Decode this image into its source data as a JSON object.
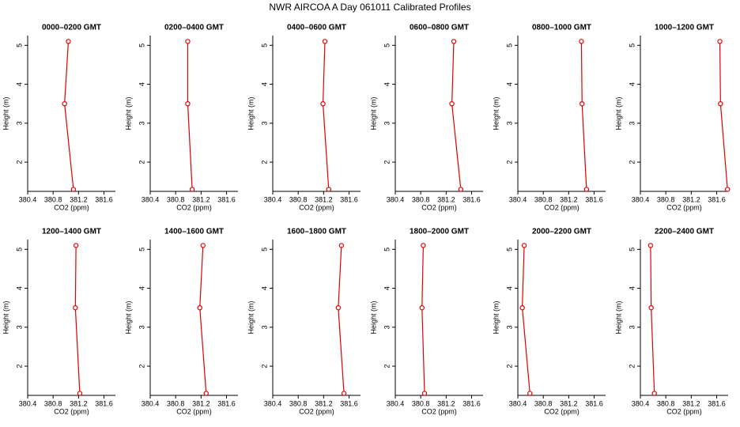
{
  "title": "NWR AIRCOA A  Day 061011  Calibrated Profiles",
  "chart_data": [
    {
      "type": "line",
      "title": "0000–0200 GMT",
      "xlabel": "CO2 (ppm)",
      "ylabel": "Height (m)",
      "y": [
        5.1,
        3.5,
        1.3
      ],
      "series": [
        {
          "color": "#e00000",
          "values": [
            381.04,
            380.98,
            381.12
          ]
        }
      ],
      "xlim": [
        380.4,
        381.78
      ],
      "xticks": [
        380.4,
        380.8,
        381.2,
        381.6
      ],
      "ylim": [
        1.25,
        5.25
      ],
      "yticks": [
        2,
        3,
        4,
        5
      ]
    },
    {
      "type": "line",
      "title": "0200–0400 GMT",
      "xlabel": "CO2 (ppm)",
      "ylabel": "Height (m)",
      "y": [
        5.1,
        3.5,
        1.3
      ],
      "series": [
        {
          "color": "#e00000",
          "values": [
            380.99,
            380.99,
            381.06
          ]
        }
      ],
      "xlim": [
        380.4,
        381.78
      ],
      "xticks": [
        380.4,
        380.8,
        381.2,
        381.6
      ],
      "ylim": [
        1.25,
        5.25
      ],
      "yticks": [
        2,
        3,
        4,
        5
      ]
    },
    {
      "type": "line",
      "title": "0400–0600 GMT",
      "xlabel": "CO2 (ppm)",
      "ylabel": "Height (m)",
      "y": [
        5.1,
        3.5,
        1.3
      ],
      "series": [
        {
          "color": "#e00000",
          "values": [
            381.22,
            381.19,
            381.28
          ]
        }
      ],
      "xlim": [
        380.4,
        381.78
      ],
      "xticks": [
        380.4,
        380.8,
        381.2,
        381.6
      ],
      "ylim": [
        1.25,
        5.25
      ],
      "yticks": [
        2,
        3,
        4,
        5
      ]
    },
    {
      "type": "line",
      "title": "0600–0800 GMT",
      "xlabel": "CO2 (ppm)",
      "ylabel": "Height (m)",
      "y": [
        5.1,
        3.5,
        1.3
      ],
      "series": [
        {
          "color": "#e00000",
          "values": [
            381.32,
            381.29,
            381.43
          ]
        }
      ],
      "xlim": [
        380.4,
        381.78
      ],
      "xticks": [
        380.4,
        380.8,
        381.2,
        381.6
      ],
      "ylim": [
        1.25,
        5.25
      ],
      "yticks": [
        2,
        3,
        4,
        5
      ]
    },
    {
      "type": "line",
      "title": "0800–1000 GMT",
      "xlabel": "CO2 (ppm)",
      "ylabel": "Height (m)",
      "y": [
        5.1,
        3.5,
        1.3
      ],
      "series": [
        {
          "color": "#e00000",
          "values": [
            381.4,
            381.41,
            381.48
          ]
        }
      ],
      "xlim": [
        380.4,
        381.78
      ],
      "xticks": [
        380.4,
        380.8,
        381.2,
        381.6
      ],
      "ylim": [
        1.25,
        5.25
      ],
      "yticks": [
        2,
        3,
        4,
        5
      ]
    },
    {
      "type": "line",
      "title": "1000–1200 GMT",
      "xlabel": "CO2 (ppm)",
      "ylabel": "Height (m)",
      "y": [
        5.1,
        3.5,
        1.3
      ],
      "series": [
        {
          "color": "#e00000",
          "values": [
            381.65,
            381.66,
            381.77
          ]
        }
      ],
      "xlim": [
        380.4,
        381.78
      ],
      "xticks": [
        380.4,
        380.8,
        381.2,
        381.6
      ],
      "ylim": [
        1.25,
        5.25
      ],
      "yticks": [
        2,
        3,
        4,
        5
      ]
    },
    {
      "type": "line",
      "title": "1200–1400 GMT",
      "xlabel": "CO2 (ppm)",
      "ylabel": "Height (m)",
      "y": [
        5.1,
        3.5,
        1.3
      ],
      "series": [
        {
          "color": "#e00000",
          "values": [
            381.16,
            381.15,
            381.22
          ]
        }
      ],
      "xlim": [
        380.4,
        381.78
      ],
      "xticks": [
        380.4,
        380.8,
        381.2,
        381.6
      ],
      "ylim": [
        1.25,
        5.25
      ],
      "yticks": [
        2,
        3,
        4,
        5
      ]
    },
    {
      "type": "line",
      "title": "1400–1600 GMT",
      "xlabel": "CO2 (ppm)",
      "ylabel": "Height (m)",
      "y": [
        5.1,
        3.5,
        1.3
      ],
      "series": [
        {
          "color": "#e00000",
          "values": [
            381.23,
            381.18,
            381.28
          ]
        }
      ],
      "xlim": [
        380.4,
        381.78
      ],
      "xticks": [
        380.4,
        380.8,
        381.2,
        381.6
      ],
      "ylim": [
        1.25,
        5.25
      ],
      "yticks": [
        2,
        3,
        4,
        5
      ]
    },
    {
      "type": "line",
      "title": "1600–1800 GMT",
      "xlabel": "CO2 (ppm)",
      "ylabel": "Height (m)",
      "y": [
        5.1,
        3.5,
        1.3
      ],
      "series": [
        {
          "color": "#e00000",
          "values": [
            381.48,
            381.43,
            381.52
          ]
        }
      ],
      "xlim": [
        380.4,
        381.78
      ],
      "xticks": [
        380.4,
        380.8,
        381.2,
        381.6
      ],
      "ylim": [
        1.25,
        5.25
      ],
      "yticks": [
        2,
        3,
        4,
        5
      ]
    },
    {
      "type": "line",
      "title": "1800–2000 GMT",
      "xlabel": "CO2 (ppm)",
      "ylabel": "Height (m)",
      "y": [
        5.1,
        3.5,
        1.3
      ],
      "series": [
        {
          "color": "#e00000",
          "values": [
            380.84,
            380.82,
            380.86
          ]
        }
      ],
      "xlim": [
        380.4,
        381.78
      ],
      "xticks": [
        380.4,
        380.8,
        381.2,
        381.6
      ],
      "ylim": [
        1.25,
        5.25
      ],
      "yticks": [
        2,
        3,
        4,
        5
      ]
    },
    {
      "type": "line",
      "title": "2000–2200 GMT",
      "xlabel": "CO2 (ppm)",
      "ylabel": "Height (m)",
      "y": [
        5.1,
        3.5,
        1.3
      ],
      "series": [
        {
          "color": "#e00000",
          "values": [
            380.5,
            380.47,
            380.59
          ]
        }
      ],
      "xlim": [
        380.4,
        381.78
      ],
      "xticks": [
        380.4,
        380.8,
        381.2,
        381.6
      ],
      "ylim": [
        1.25,
        5.25
      ],
      "yticks": [
        2,
        3,
        4,
        5
      ]
    },
    {
      "type": "line",
      "title": "2200–2400 GMT",
      "xlabel": "CO2 (ppm)",
      "ylabel": "Height (m)",
      "y": [
        5.1,
        3.5,
        1.3
      ],
      "series": [
        {
          "color": "#e00000",
          "values": [
            380.56,
            380.57,
            380.62
          ]
        }
      ],
      "xlim": [
        380.4,
        381.78
      ],
      "xticks": [
        380.4,
        380.8,
        381.2,
        381.6
      ],
      "ylim": [
        1.25,
        5.25
      ],
      "yticks": [
        2,
        3,
        4,
        5
      ]
    }
  ]
}
